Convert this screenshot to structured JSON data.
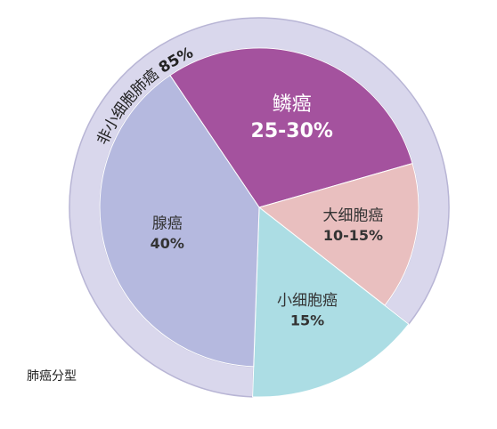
{
  "chart_data": {
    "type": "pie",
    "categories": [
      "鳞癌",
      "大细胞癌",
      "小细胞癌",
      "腺癌"
    ],
    "values": [
      30,
      15,
      15,
      40
    ],
    "value_labels": [
      "25-30%",
      "10-15%",
      "15%",
      "40%"
    ],
    "colors": [
      "#a4529e",
      "#e9bfbf",
      "#acdde4",
      "#b5b9df"
    ],
    "label_colors": [
      "#ffffff",
      "#333333",
      "#333333",
      "#333333"
    ],
    "group": {
      "name": "非小细胞肺癌",
      "value": 85,
      "value_label": "85%",
      "color": "#d9d7ec"
    },
    "caption": "肺癌分型"
  }
}
